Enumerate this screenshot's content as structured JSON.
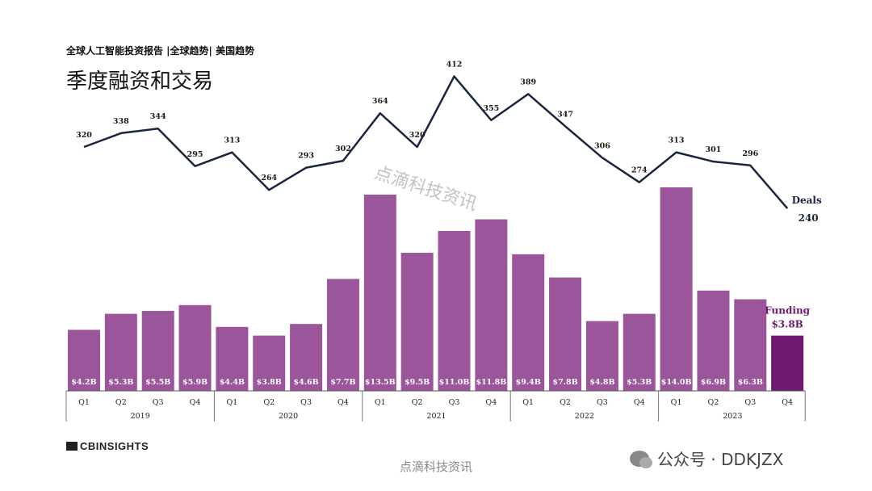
{
  "header": {
    "subtitle": "全球人工智能投资报告 |全球趋势| 美国趋势",
    "title": "季度融资和交易"
  },
  "chart_data": {
    "type": "bar",
    "quarters": [
      "Q1",
      "Q2",
      "Q3",
      "Q4",
      "Q1",
      "Q2",
      "Q3",
      "Q4",
      "Q1",
      "Q2",
      "Q3",
      "Q4",
      "Q1",
      "Q2",
      "Q3",
      "Q4",
      "Q1",
      "Q2",
      "Q3",
      "Q4"
    ],
    "years": [
      "2019",
      "2020",
      "2021",
      "2022",
      "2023"
    ],
    "series": [
      {
        "name": "Funding",
        "values": [
          4.2,
          5.3,
          5.5,
          5.9,
          4.4,
          3.8,
          4.6,
          7.7,
          13.5,
          9.5,
          11.0,
          11.8,
          9.4,
          7.8,
          4.8,
          5.3,
          14.0,
          6.9,
          6.3,
          3.8
        ],
        "labels": [
          "$4.2B",
          "$5.3B",
          "$5.5B",
          "$5.9B",
          "$4.4B",
          "$3.8B",
          "$4.6B",
          "$7.7B",
          "$13.5B",
          "$9.5B",
          "$11.0B",
          "$11.8B",
          "$9.4B",
          "$7.8B",
          "$4.8B",
          "$5.3B",
          "$14.0B",
          "$6.9B",
          "$6.3B",
          ""
        ],
        "last_label": "$3.8B",
        "color": "#9b559b",
        "highlight_color": "#6e186e"
      },
      {
        "name": "Deals",
        "values": [
          320,
          338,
          344,
          295,
          313,
          264,
          293,
          302,
          364,
          320,
          412,
          355,
          389,
          347,
          306,
          274,
          313,
          301,
          296,
          240
        ],
        "last_label": "240",
        "color": "#1a2540"
      }
    ]
  },
  "brand": {
    "name": "CBINSIGHTS"
  },
  "watermarks": {
    "overlay": "点滴科技资讯",
    "footer": "点滴科技资讯",
    "wechat": "公众号 · DDKJZX"
  }
}
